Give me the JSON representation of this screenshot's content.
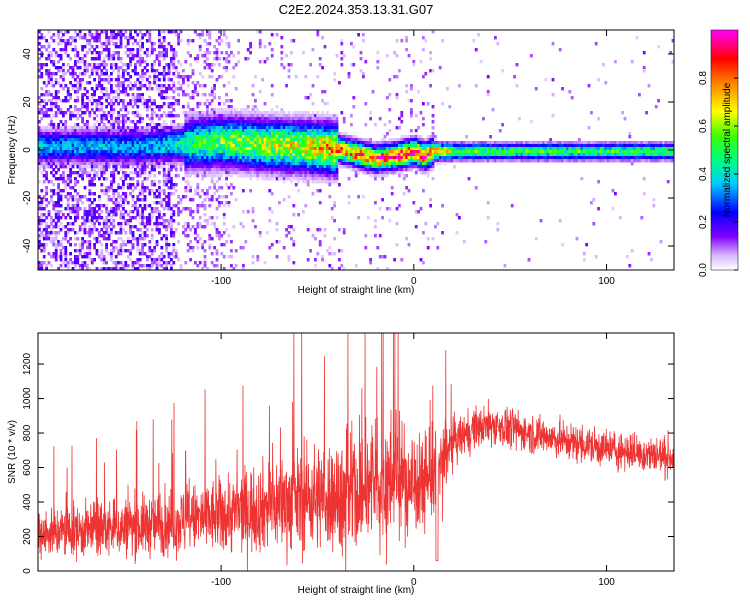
{
  "figure": {
    "title": "C2E2.2024.353.13.31.G07"
  },
  "chart_data": [
    {
      "type": "heatmap",
      "name": "spectrogram",
      "xlabel": "Height of straight line (km)",
      "ylabel": "Frequency (Hz)",
      "xlim": [
        -195,
        135
      ],
      "ylim": [
        -50,
        50
      ],
      "x_ticks": [
        -100,
        0,
        100
      ],
      "y_ticks": [
        -40,
        -20,
        0,
        20,
        40
      ],
      "colorbar": {
        "label": "Normalized spectral amplitude",
        "range": [
          0,
          1
        ],
        "ticks": [
          0.0,
          0.2,
          0.4,
          0.6,
          0.8
        ],
        "colormap": [
          "#ffffff",
          "#8000ff",
          "#0000ff",
          "#00ffff",
          "#00ff00",
          "#ffff00",
          "#ff8000",
          "#ff0000",
          "#ff00ff"
        ]
      },
      "ridge": {
        "description_values": "dominant frequency vs height",
        "x": [
          -140,
          -120,
          -100,
          -80,
          -60,
          -40,
          -30,
          -20,
          -10,
          0,
          5,
          10,
          20,
          50,
          100,
          135
        ],
        "y": [
          2,
          3,
          4,
          3,
          2,
          1,
          -1,
          -3,
          -2,
          0,
          -2,
          0,
          0,
          0,
          0,
          0
        ],
        "amplitude": [
          0.35,
          0.45,
          0.55,
          0.6,
          0.65,
          0.75,
          0.8,
          0.85,
          0.85,
          0.9,
          0.9,
          0.8,
          0.55,
          0.5,
          0.5,
          0.5
        ]
      }
    },
    {
      "type": "line",
      "name": "snr",
      "xlabel": "Height of straight line (km)",
      "ylabel": "SNR (10 * v/v)",
      "xlim": [
        -195,
        135
      ],
      "ylim": [
        0,
        1380
      ],
      "x_ticks": [
        -100,
        0,
        100
      ],
      "y_ticks": [
        0,
        200,
        400,
        600,
        800,
        1000,
        1200
      ],
      "series": [
        {
          "color": "#ee3333",
          "envelope_x": [
            -195,
            -175,
            -150,
            -125,
            -100,
            -75,
            -50,
            -30,
            -20,
            -10,
            0,
            10,
            20,
            30,
            40,
            60,
            80,
            100,
            120,
            135
          ],
          "envelope_mean": [
            220,
            230,
            250,
            280,
            320,
            380,
            430,
            450,
            500,
            520,
            510,
            560,
            740,
            820,
            850,
            800,
            750,
            710,
            680,
            660
          ],
          "envelope_spread": [
            130,
            140,
            150,
            170,
            200,
            240,
            280,
            320,
            330,
            320,
            300,
            250,
            120,
            110,
            110,
            100,
            100,
            100,
            100,
            100
          ]
        }
      ]
    }
  ]
}
